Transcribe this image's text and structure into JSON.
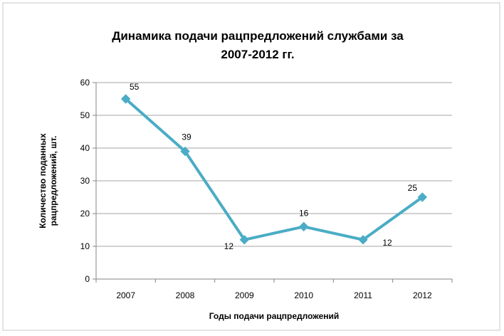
{
  "chart_data": {
    "type": "line",
    "title_lines": [
      "Динамика подачи рацпредложений службами за",
      "2007-2012 гг."
    ],
    "xlabel": "Годы подачи рацпредложений",
    "ylabel_lines": [
      "Количество поданных",
      "рацпредложений, шт."
    ],
    "categories": [
      "2007",
      "2008",
      "2009",
      "2010",
      "2011",
      "2012"
    ],
    "series": [
      {
        "values": [
          55,
          39,
          12,
          16,
          12,
          25
        ],
        "color": "#4BACC6"
      }
    ],
    "data_labels": [
      "55",
      "39",
      "12",
      "16",
      "12",
      "25"
    ],
    "ylim": [
      0,
      60
    ],
    "yticks": [
      "0",
      "10",
      "20",
      "30",
      "40",
      "50",
      "60"
    ],
    "grid": true,
    "legend": "none",
    "marker": "diamond"
  }
}
